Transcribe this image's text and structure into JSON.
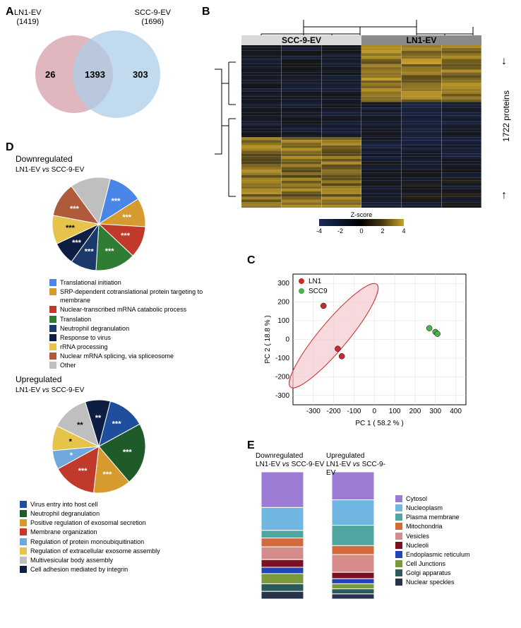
{
  "panelLabels": {
    "A": "A",
    "B": "B",
    "C": "C",
    "D": "D",
    "E": "E"
  },
  "venn": {
    "leftTitle1": "LN1-EV",
    "leftTitle2": "(1419)",
    "rightTitle1": "SCC-9-EV",
    "rightTitle2": "(1696)",
    "leftOnly": "26",
    "intersection": "1393",
    "rightOnly": "303",
    "colorLeft": "#dba9b4",
    "colorRight": "#aecde8"
  },
  "heatmap": {
    "header1": "SCC-9-EV",
    "header2": "LN1-EV",
    "proteinsLabel": "1722 proteins",
    "zscoreLabel": "Z-score",
    "zscoreTicks": [
      "-4",
      "-2",
      "0",
      "2",
      "4"
    ],
    "colorbar": [
      "#1b2a5a",
      "#0a1530",
      "#000000",
      "#4a3b10",
      "#c9a227"
    ],
    "cols": 6,
    "rows": 60,
    "header1_bg": "#d9d9d9",
    "header2_bg": "#8a8a8a"
  },
  "pca": {
    "xlabel": "PC 1 ( 58.2 % )",
    "ylabel": "PC 2 ( 18.8 % )",
    "legend": [
      {
        "label": "LN1",
        "color": "#c92a2a"
      },
      {
        "label": "SCC9",
        "color": "#4caf50"
      }
    ],
    "ln1": {
      "color": "#c92a2a",
      "points": [
        [
          -250,
          180
        ],
        [
          -180,
          -50
        ],
        [
          -160,
          -90
        ]
      ]
    },
    "scc9": {
      "color": "#4caf50",
      "points": [
        [
          270,
          60
        ],
        [
          300,
          40
        ],
        [
          310,
          30
        ]
      ]
    },
    "xlim": [
      -400,
      450
    ],
    "ylim": [
      -350,
      350
    ],
    "ellipse_fill": "#f5c9cf",
    "ellipse_stroke": "#c92a2a"
  },
  "pieDown": {
    "title1": "Downregulated",
    "title2": "LN1-EV vs SCC-9-EV",
    "slices": [
      {
        "label": "Translational initiation",
        "value": 12,
        "color": "#4a86e8",
        "sig": "***"
      },
      {
        "label": "SRP-dependent cotranslational protein targeting to membrane",
        "value": 10,
        "color": "#d69b2e",
        "sig": "***"
      },
      {
        "label": "Nuclear-transcribed mRNA catabolic process",
        "value": 11,
        "color": "#c0392b",
        "sig": "***"
      },
      {
        "label": "Translation",
        "value": 14,
        "color": "#2e7d32",
        "sig": "***"
      },
      {
        "label": "Neutrophil degranulation",
        "value": 9,
        "color": "#1b3a6b",
        "sig": "***"
      },
      {
        "label": "Response to virus",
        "value": 8,
        "color": "#0e1e42",
        "sig": "***"
      },
      {
        "label": "rRNA processing",
        "value": 10,
        "color": "#e6c34a",
        "sig": "***",
        "dark": true
      },
      {
        "label": "Nuclear mRNA splicing, via spliceosome",
        "value": 12,
        "color": "#b05a3c",
        "sig": "***"
      },
      {
        "label": "Other",
        "value": 14,
        "color": "#bfbfbf",
        "sig": ""
      }
    ]
  },
  "pieUp": {
    "title1": "Upregulated",
    "title2": "LN1-EV vs SCC-9-EV",
    "slices": [
      {
        "label": "Virus entry into host cell",
        "value": 12,
        "color": "#1f4e9c",
        "sig": "***"
      },
      {
        "label": "Neutrophil degranulation",
        "value": 20,
        "color": "#1e5a2a",
        "sig": "***"
      },
      {
        "label": "Positive regulation of exosomal secretion",
        "value": 12,
        "color": "#d69b2e",
        "sig": "***"
      },
      {
        "label": "Membrane organization",
        "value": 14,
        "color": "#c0392b",
        "sig": "***"
      },
      {
        "label": "Regulation of protein monoubiquitination",
        "value": 6,
        "color": "#6fa8dc",
        "sig": "*"
      },
      {
        "label": "Regulation of extracellular exosome assembly",
        "value": 8,
        "color": "#e6c34a",
        "sig": "*",
        "dark": true
      },
      {
        "label": "Multivesicular body assembly",
        "value": 12,
        "color": "#bfbfbf",
        "sig": "**",
        "dark": true
      },
      {
        "label": "Cell adhesion mediated by integrin",
        "value": 8,
        "color": "#0e1e42",
        "sig": "**"
      }
    ],
    "legendExtraTop": 8
  },
  "stacks": {
    "downTitle1": "Downregulated",
    "downTitle2": "LN1-EV vs SCC-9-EV",
    "upTitle1": "Upregulated",
    "upTitle2": "LN1-EV vs SCC-9-EV",
    "categories": [
      {
        "label": "Cytosol",
        "color": "#9b7bd4"
      },
      {
        "label": "Nucleoplasm",
        "color": "#6fb7e0"
      },
      {
        "label": "Plasma membrane",
        "color": "#4fa6a0"
      },
      {
        "label": "Mitochondria",
        "color": "#d26a3a"
      },
      {
        "label": "Vesicles",
        "color": "#d68b8b"
      },
      {
        "label": "Nucleoli",
        "color": "#7a1020"
      },
      {
        "label": "Endoplasmic reticulum",
        "color": "#2344b5"
      },
      {
        "label": "Cell Junctions",
        "color": "#7a9a3a"
      },
      {
        "label": "Golgi apparatus",
        "color": "#2a5a5a"
      },
      {
        "label": "Nuclear speckles",
        "color": "#26324a"
      }
    ],
    "down": [
      28,
      18,
      6,
      7,
      10,
      6,
      5,
      8,
      6,
      6
    ],
    "up": [
      22,
      20,
      16,
      7,
      14,
      5,
      4,
      4,
      4,
      4
    ]
  }
}
